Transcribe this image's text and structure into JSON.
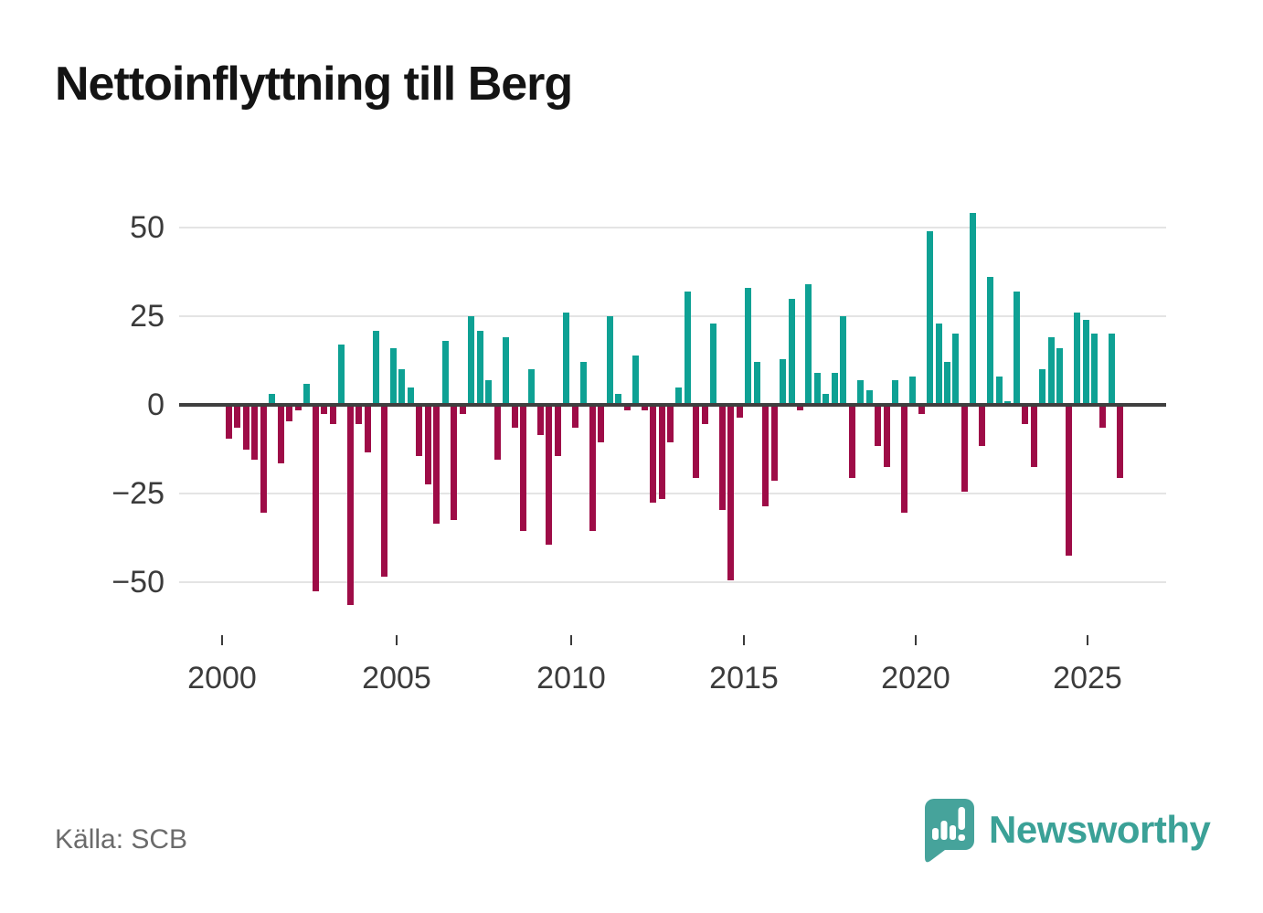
{
  "title": "Nettoinflyttning till Berg",
  "source": {
    "text": "Källa: SCB"
  },
  "logo": {
    "brand": "Newsworthy",
    "icon": "bar-chart-speech-bubble-icon"
  },
  "colors": {
    "positive_bar": "#0ea194",
    "negative_bar": "#9e0c47",
    "title_text": "#141414",
    "axis_text": "#3b3b3b",
    "gridline": "#e4e4e4",
    "zero_line": "#3f3f3f",
    "source_text": "#6b6b6b",
    "logo_teal": "#3ba197"
  },
  "chart_data": {
    "type": "bar",
    "title": "Nettoinflyttning till Berg",
    "xlabel": "",
    "ylabel": "",
    "frequency": "quarterly",
    "start_period": "2000 Q1",
    "end_period": "2025 Q4",
    "x_tick_labels": [
      "2000",
      "2005",
      "2010",
      "2015",
      "2020",
      "2025"
    ],
    "y_ticks": [
      {
        "value": 50,
        "label": "50"
      },
      {
        "value": 25,
        "label": "25"
      },
      {
        "value": 0,
        "label": "0"
      },
      {
        "value": -25,
        "label": "−25"
      },
      {
        "value": -50,
        "label": "−50"
      }
    ],
    "ylim": [
      -63,
      55
    ],
    "grid": "horizontal",
    "legend": "none",
    "values": [
      -9,
      -6,
      -12,
      -15,
      -30,
      3,
      -16,
      -4,
      -1,
      6,
      -52,
      -2,
      -5,
      17,
      -56,
      -5,
      -13,
      21,
      -48,
      16,
      10,
      5,
      -14,
      -22,
      -33,
      18,
      -32,
      -2,
      25,
      21,
      7,
      -15,
      19,
      -6,
      -35,
      10,
      -8,
      -39,
      -14,
      26,
      -6,
      12,
      -35,
      -10,
      25,
      3,
      -1,
      14,
      -1,
      -27,
      -26,
      -10,
      5,
      32,
      -20,
      -5,
      23,
      -29,
      -49,
      -3,
      33,
      12,
      -28,
      -21,
      13,
      30,
      -1,
      34,
      9,
      3,
      9,
      25,
      -20,
      7,
      4,
      -11,
      -17,
      7,
      -30,
      8,
      -2,
      49,
      23,
      12,
      20,
      -24,
      54,
      -11,
      36,
      8,
      1,
      32,
      -5,
      -17,
      10,
      19,
      16,
      -42,
      26,
      24,
      20,
      -6,
      20,
      -20
    ]
  }
}
